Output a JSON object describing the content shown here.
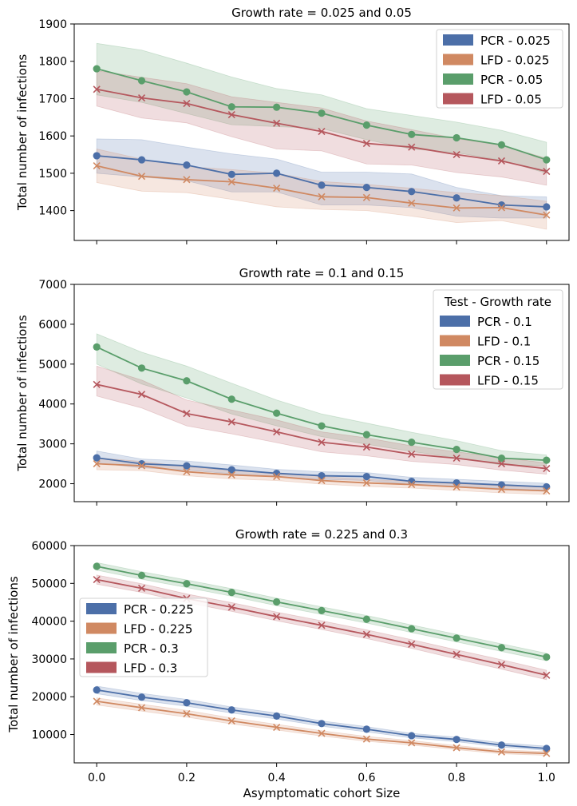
{
  "figure": {
    "xlabel": "Asymptomatic cohort Size"
  },
  "colors": {
    "PCR_low": "#4c6fa8",
    "LFD_low": "#d08962",
    "PCR_high": "#5a9e6b",
    "LFD_high": "#b5575d"
  },
  "chart_data": [
    {
      "type": "line",
      "title": "Growth rate = 0.025 and 0.05",
      "xlabel": "",
      "ylabel": "Total number of infections",
      "xlim": [
        -0.05,
        1.05
      ],
      "ylim": [
        1320,
        1900
      ],
      "yticks": [
        1400,
        1500,
        1600,
        1700,
        1800,
        1900
      ],
      "ytick_labels": [
        "1400",
        "1500",
        "1600",
        "1700",
        "1800",
        "1900"
      ],
      "xticks": [
        0.0,
        0.2,
        0.4,
        0.6,
        0.8,
        1.0
      ],
      "xtick_labels": [],
      "legend_title": "",
      "legend_location": "upper right",
      "x": [
        0.0,
        0.1,
        0.2,
        0.3,
        0.4,
        0.5,
        0.6,
        0.7,
        0.8,
        0.9,
        1.0
      ],
      "series": [
        {
          "name": "PCR - 0.025",
          "marker": "circle",
          "color": "#4c6fa8",
          "values": [
            1547,
            1536,
            1522,
            1497,
            1500,
            1468,
            1462,
            1451,
            1434,
            1415,
            1410
          ],
          "lower": [
            1500,
            1490,
            1480,
            1450,
            1450,
            1415,
            1415,
            1408,
            1385,
            1380,
            1380
          ],
          "upper": [
            1592,
            1590,
            1570,
            1552,
            1538,
            1503,
            1503,
            1498,
            1462,
            1440,
            1437
          ]
        },
        {
          "name": "LFD - 0.025",
          "marker": "x",
          "color": "#d08962",
          "values": [
            1520,
            1492,
            1483,
            1477,
            1460,
            1437,
            1435,
            1420,
            1407,
            1408,
            1388
          ],
          "lower": [
            1475,
            1452,
            1448,
            1430,
            1410,
            1403,
            1400,
            1385,
            1368,
            1373,
            1350
          ],
          "upper": [
            1565,
            1538,
            1518,
            1510,
            1500,
            1478,
            1470,
            1460,
            1448,
            1440,
            1425
          ]
        },
        {
          "name": "PCR - 0.05",
          "marker": "circle",
          "color": "#5a9e6b",
          "values": [
            1780,
            1748,
            1718,
            1678,
            1677,
            1661,
            1629,
            1604,
            1595,
            1576,
            1536
          ],
          "lower": [
            1710,
            1690,
            1660,
            1630,
            1625,
            1620,
            1590,
            1565,
            1555,
            1535,
            1500
          ],
          "upper": [
            1848,
            1830,
            1795,
            1758,
            1727,
            1710,
            1673,
            1655,
            1637,
            1615,
            1583
          ]
        },
        {
          "name": "LFD - 0.05",
          "marker": "x",
          "color": "#b5575d",
          "values": [
            1725,
            1702,
            1687,
            1657,
            1634,
            1612,
            1580,
            1570,
            1550,
            1533,
            1505
          ],
          "lower": [
            1680,
            1648,
            1635,
            1598,
            1565,
            1560,
            1525,
            1522,
            1502,
            1490,
            1468
          ],
          "upper": [
            1775,
            1757,
            1740,
            1705,
            1690,
            1675,
            1640,
            1617,
            1593,
            1575,
            1540
          ]
        }
      ]
    },
    {
      "type": "line",
      "title": "Growth rate = 0.1 and 0.15",
      "xlabel": "",
      "ylabel": "Total number of infections",
      "xlim": [
        -0.05,
        1.05
      ],
      "ylim": [
        1550,
        7000
      ],
      "yticks": [
        2000,
        3000,
        4000,
        5000,
        6000,
        7000
      ],
      "ytick_labels": [
        "2000",
        "3000",
        "4000",
        "5000",
        "6000",
        "7000"
      ],
      "xticks": [
        0.0,
        0.2,
        0.4,
        0.6,
        0.8,
        1.0
      ],
      "xtick_labels": [],
      "legend_title": "Test - Growth rate",
      "legend_location": "upper right",
      "x": [
        0.0,
        0.1,
        0.2,
        0.3,
        0.4,
        0.5,
        0.6,
        0.7,
        0.8,
        0.9,
        1.0
      ],
      "series": [
        {
          "name": "PCR - 0.1",
          "marker": "circle",
          "color": "#4c6fa8",
          "values": [
            2650,
            2500,
            2450,
            2350,
            2260,
            2200,
            2180,
            2060,
            2020,
            1970,
            1920
          ],
          "lower": [
            2520,
            2400,
            2340,
            2250,
            2170,
            2110,
            2080,
            1980,
            1940,
            1880,
            1840
          ],
          "upper": [
            2820,
            2620,
            2570,
            2470,
            2360,
            2300,
            2280,
            2160,
            2110,
            2060,
            2010
          ]
        },
        {
          "name": "LFD - 0.1",
          "marker": "x",
          "color": "#d08962",
          "values": [
            2500,
            2450,
            2300,
            2220,
            2180,
            2080,
            2020,
            1980,
            1920,
            1860,
            1820
          ],
          "lower": [
            2350,
            2330,
            2200,
            2120,
            2080,
            1990,
            1930,
            1890,
            1830,
            1770,
            1730
          ],
          "upper": [
            2650,
            2560,
            2420,
            2330,
            2280,
            2180,
            2110,
            2060,
            2000,
            1950,
            1910
          ]
        },
        {
          "name": "PCR - 0.15",
          "marker": "circle",
          "color": "#5a9e6b",
          "values": [
            5430,
            4900,
            4580,
            4120,
            3770,
            3450,
            3230,
            3040,
            2860,
            2640,
            2590
          ],
          "lower": [
            5000,
            4500,
            4150,
            3750,
            3450,
            3180,
            2990,
            2810,
            2650,
            2470,
            2450
          ],
          "upper": [
            5760,
            5300,
            4950,
            4520,
            4100,
            3750,
            3520,
            3290,
            3080,
            2830,
            2720
          ]
        },
        {
          "name": "LFD - 0.15",
          "marker": "x",
          "color": "#b5575d",
          "values": [
            4490,
            4240,
            3760,
            3550,
            3300,
            3040,
            2920,
            2740,
            2640,
            2500,
            2380
          ],
          "lower": [
            4200,
            3900,
            3450,
            3250,
            3030,
            2800,
            2700,
            2560,
            2480,
            2340,
            2240
          ],
          "upper": [
            4950,
            4600,
            4100,
            3850,
            3600,
            3300,
            3150,
            2950,
            2800,
            2660,
            2520
          ]
        }
      ]
    },
    {
      "type": "line",
      "title": "Growth rate = 0.225 and 0.3",
      "xlabel": "Asymptomatic cohort Size",
      "ylabel": "Total number of infections",
      "xlim": [
        -0.05,
        1.05
      ],
      "ylim": [
        2500,
        60000
      ],
      "yticks": [
        10000,
        20000,
        30000,
        40000,
        50000,
        60000
      ],
      "ytick_labels": [
        "10000",
        "20000",
        "30000",
        "40000",
        "50000",
        "60000"
      ],
      "xticks": [
        0.0,
        0.2,
        0.4,
        0.6,
        0.8,
        1.0
      ],
      "xtick_labels": [
        "0.0",
        "0.2",
        "0.4",
        "0.6",
        "0.8",
        "1.0"
      ],
      "legend_title": "",
      "legend_location": "center left",
      "x": [
        0.0,
        0.1,
        0.2,
        0.3,
        0.4,
        0.5,
        0.6,
        0.7,
        0.8,
        0.9,
        1.0
      ],
      "series": [
        {
          "name": "PCR - 0.225",
          "marker": "circle",
          "color": "#4c6fa8",
          "values": [
            21800,
            19900,
            18400,
            16500,
            14900,
            12900,
            11400,
            9700,
            8700,
            7200,
            6300
          ],
          "lower": [
            20800,
            19000,
            17500,
            15700,
            14100,
            12200,
            10700,
            9100,
            8100,
            6700,
            5800
          ],
          "upper": [
            22800,
            20900,
            19300,
            17300,
            15700,
            13600,
            12100,
            10300,
            9300,
            7800,
            6900
          ]
        },
        {
          "name": "LFD - 0.225",
          "marker": "x",
          "color": "#d08962",
          "values": [
            18800,
            17100,
            15500,
            13600,
            11900,
            10300,
            8800,
            7800,
            6500,
            5400,
            5000
          ],
          "lower": [
            17800,
            16200,
            14600,
            12800,
            11200,
            9600,
            8200,
            7200,
            6000,
            4900,
            4500
          ],
          "upper": [
            19700,
            18000,
            16400,
            14400,
            12700,
            11000,
            9500,
            8400,
            7100,
            5900,
            5500
          ]
        },
        {
          "name": "PCR - 0.3",
          "marker": "circle",
          "color": "#5a9e6b",
          "values": [
            54500,
            52100,
            49900,
            47600,
            45100,
            42800,
            40500,
            38000,
            35500,
            33000,
            30500
          ],
          "lower": [
            53500,
            51100,
            48900,
            46600,
            44100,
            41800,
            39500,
            37000,
            34500,
            32000,
            29500
          ],
          "upper": [
            55500,
            53100,
            50900,
            48600,
            46100,
            43800,
            41500,
            39000,
            36500,
            34000,
            31500
          ]
        },
        {
          "name": "LFD - 0.3",
          "marker": "x",
          "color": "#b5575d",
          "values": [
            51000,
            48700,
            46000,
            43700,
            41200,
            38900,
            36500,
            33900,
            31200,
            28500,
            25700
          ],
          "lower": [
            49800,
            47600,
            44900,
            42600,
            40100,
            37800,
            35400,
            32800,
            30000,
            27300,
            24500
          ],
          "upper": [
            52200,
            49900,
            47200,
            44900,
            42400,
            40100,
            37700,
            35100,
            32400,
            29800,
            27000
          ]
        }
      ]
    }
  ]
}
